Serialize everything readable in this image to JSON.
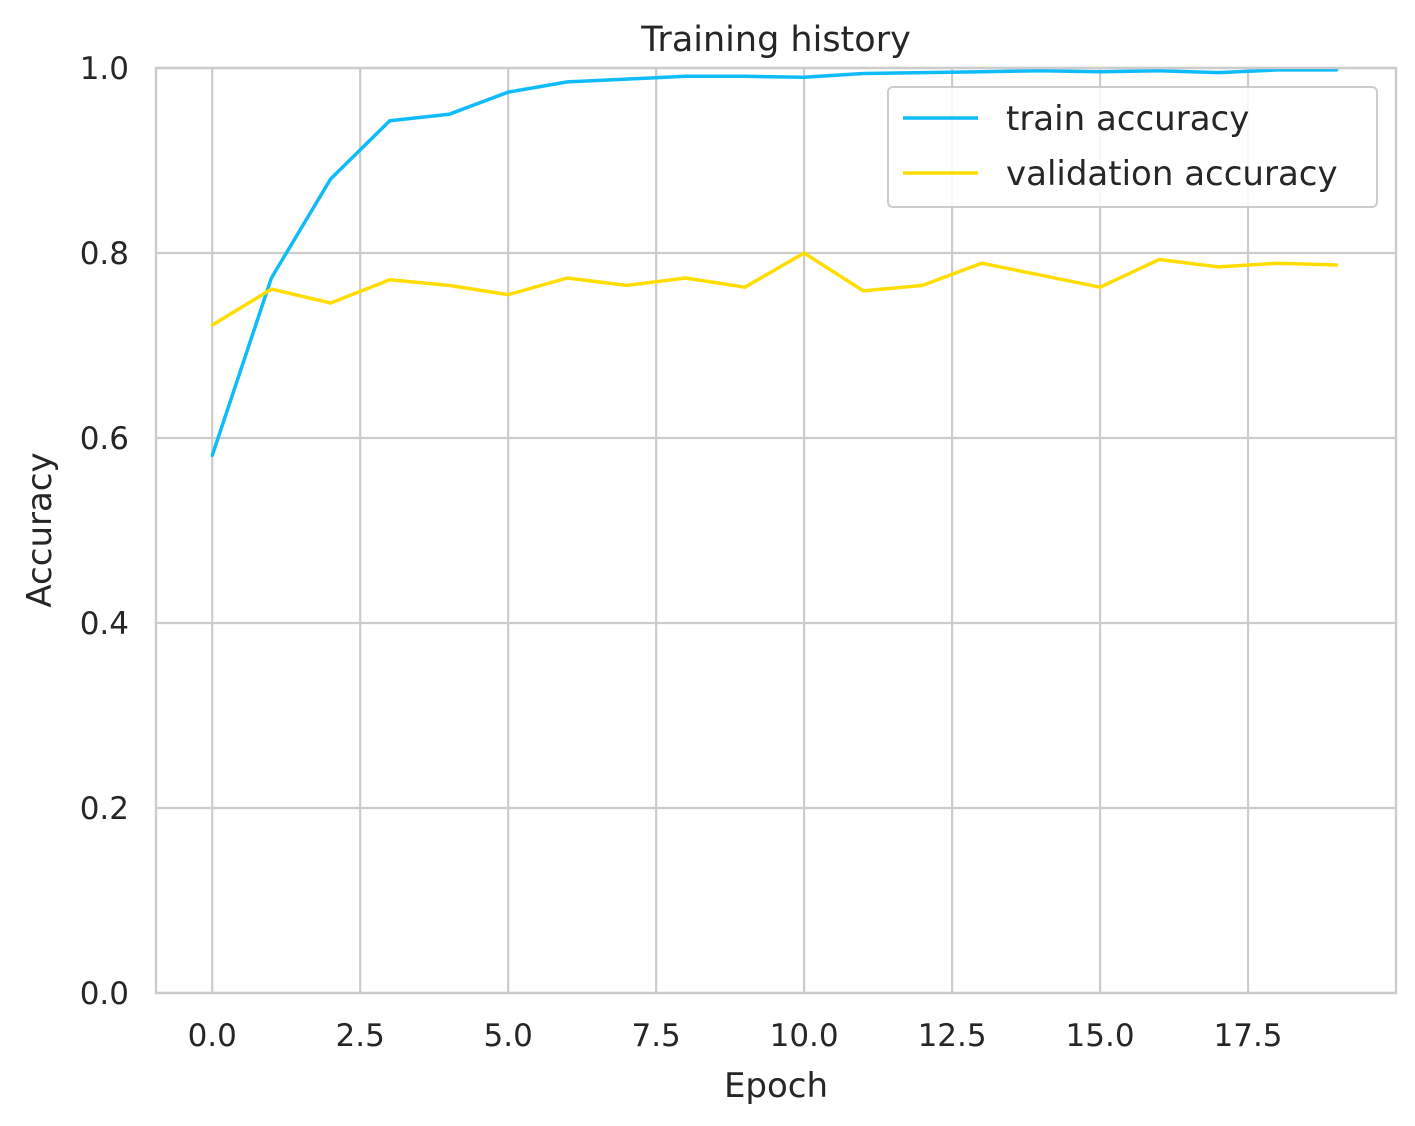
{
  "chart_data": {
    "type": "line",
    "title": "Training history",
    "xlabel": "Epoch",
    "ylabel": "Accuracy",
    "xlim": [
      -0.95,
      20.0
    ],
    "ylim": [
      0.0,
      1.0
    ],
    "xticks": [
      0.0,
      2.5,
      5.0,
      7.5,
      10.0,
      12.5,
      15.0,
      17.5
    ],
    "xtick_labels": [
      "0.0",
      "2.5",
      "5.0",
      "7.5",
      "10.0",
      "12.5",
      "15.0",
      "17.5"
    ],
    "yticks": [
      0.0,
      0.2,
      0.4,
      0.6,
      0.8,
      1.0
    ],
    "ytick_labels": [
      "0.0",
      "0.2",
      "0.4",
      "0.6",
      "0.8",
      "1.0"
    ],
    "grid": true,
    "legend_position": "top-right",
    "x": [
      0,
      1,
      2,
      3,
      4,
      5,
      6,
      7,
      8,
      9,
      10,
      11,
      12,
      13,
      14,
      15,
      16,
      17,
      18,
      19
    ],
    "series": [
      {
        "name": "train accuracy",
        "color": "#0fbcf9",
        "values": [
          0.581,
          0.773,
          0.88,
          0.943,
          0.95,
          0.974,
          0.985,
          0.988,
          0.991,
          0.991,
          0.99,
          0.994,
          0.995,
          0.996,
          0.997,
          0.996,
          0.997,
          0.995,
          0.998,
          0.998
        ]
      },
      {
        "name": "validation accuracy",
        "color": "#ffdd00",
        "values": [
          0.722,
          0.761,
          0.746,
          0.771,
          0.765,
          0.755,
          0.773,
          0.765,
          0.773,
          0.763,
          0.8,
          0.759,
          0.765,
          0.789,
          0.776,
          0.763,
          0.793,
          0.785,
          0.789,
          0.787
        ]
      }
    ]
  }
}
